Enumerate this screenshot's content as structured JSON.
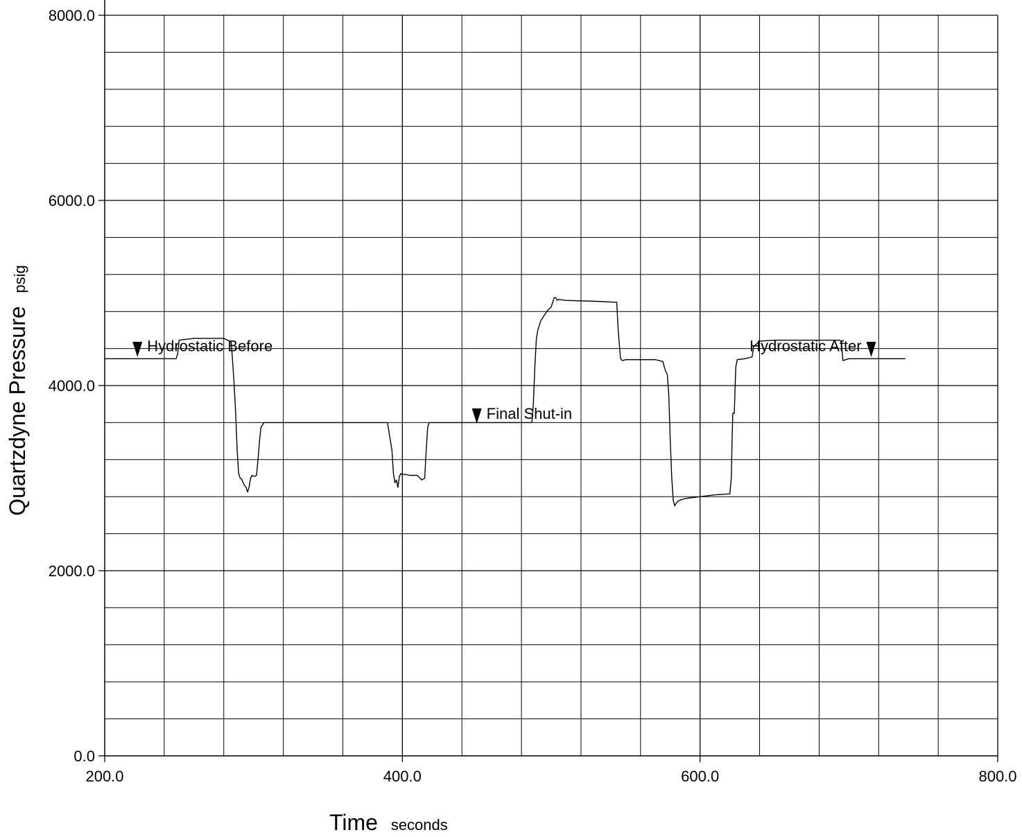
{
  "chart_data": {
    "type": "line",
    "xlabel": "Time",
    "xunit": "seconds",
    "ylabel": "Quartzdyne Pressure",
    "yunit": "psig",
    "xlim": [
      200,
      800
    ],
    "ylim": [
      0,
      8000
    ],
    "x_major_ticks": [
      200,
      400,
      600,
      800
    ],
    "x_tick_labels": [
      "200.0",
      "400.0",
      "600.0",
      "800.0"
    ],
    "x_minor_step": 40,
    "y_major_ticks": [
      0,
      2000,
      4000,
      6000,
      8000
    ],
    "y_tick_labels": [
      "0.0",
      "2000.0",
      "4000.0",
      "6000.0",
      "8000.0"
    ],
    "y_minor_step": 400,
    "grid": true,
    "series": [
      {
        "color": "#000000",
        "x": [
          200,
          248,
          249,
          250,
          260,
          280,
          285,
          286,
          287,
          288,
          289,
          290,
          291,
          292,
          293,
          294,
          295,
          296,
          297,
          298,
          299,
          300,
          301,
          302,
          303,
          304,
          305,
          307,
          310,
          350,
          390,
          393,
          394,
          395,
          396,
          397,
          398,
          399,
          400,
          402,
          405,
          410,
          413,
          415,
          416,
          417,
          418,
          419,
          420,
          440,
          460,
          480,
          487,
          488,
          489,
          490,
          491,
          493,
          495,
          497,
          500,
          501,
          502,
          503,
          504,
          505,
          510,
          530,
          543,
          544,
          545,
          546,
          546.5,
          547,
          548,
          550,
          560,
          570,
          575,
          576,
          577,
          578,
          579,
          580,
          581,
          582,
          583,
          584,
          585,
          586,
          590,
          600,
          610,
          620,
          621,
          621.5,
          622,
          623,
          624,
          625,
          630,
          635,
          636,
          640,
          650,
          670,
          685,
          694,
          695,
          696,
          700,
          710,
          720,
          738
        ],
        "y": [
          4290,
          4290,
          4340,
          4490,
          4510,
          4510,
          4470,
          4250,
          4000,
          3700,
          3300,
          3050,
          3000,
          2990,
          2950,
          2920,
          2900,
          2850,
          2900,
          3000,
          3030,
          3020,
          3020,
          3030,
          3200,
          3400,
          3550,
          3600,
          3600,
          3600,
          3600,
          3300,
          3050,
          2950,
          2980,
          2900,
          3020,
          3050,
          3040,
          3040,
          3030,
          3030,
          2980,
          3000,
          3300,
          3550,
          3600,
          3600,
          3600,
          3600,
          3600,
          3600,
          3600,
          3800,
          4200,
          4500,
          4600,
          4700,
          4750,
          4800,
          4850,
          4900,
          4950,
          4950,
          4920,
          4930,
          4920,
          4910,
          4900,
          4900,
          4600,
          4400,
          4300,
          4280,
          4270,
          4280,
          4280,
          4280,
          4260,
          4200,
          4150,
          4120,
          3900,
          3400,
          3000,
          2760,
          2700,
          2730,
          2750,
          2760,
          2780,
          2800,
          2820,
          2830,
          3000,
          3400,
          3700,
          3700,
          4200,
          4280,
          4290,
          4310,
          4420,
          4480,
          4490,
          4490,
          4490,
          4490,
          4460,
          4270,
          4290,
          4290,
          4290,
          4290
        ]
      }
    ],
    "annotations": [
      {
        "text": "Hydrostatic Before",
        "x": 222,
        "y": 4430,
        "marker_x": 222,
        "marker_y": 4390,
        "side": "right"
      },
      {
        "text": "Final Shut-in",
        "x": 450,
        "y": 3700,
        "marker_x": 450,
        "marker_y": 3670,
        "side": "right"
      },
      {
        "text": "Hydrostatic After",
        "x": 715,
        "y": 4430,
        "marker_x": 715,
        "marker_y": 4390,
        "side": "left"
      }
    ]
  }
}
